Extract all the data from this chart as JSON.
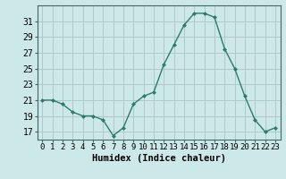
{
  "x": [
    0,
    1,
    2,
    3,
    4,
    5,
    6,
    7,
    8,
    9,
    10,
    11,
    12,
    13,
    14,
    15,
    16,
    17,
    18,
    19,
    20,
    21,
    22,
    23
  ],
  "y": [
    21,
    21,
    20.5,
    19.5,
    19,
    19,
    18.5,
    16.5,
    17.5,
    20.5,
    21.5,
    22,
    25.5,
    28,
    30.5,
    32,
    32,
    31.5,
    27.5,
    25,
    21.5,
    18.5,
    17,
    17.5
  ],
  "line_color": "#2d7a6e",
  "marker_color": "#2d7a6e",
  "bg_color": "#cce8e8",
  "grid_color": "#b0c8c8",
  "xlabel": "Humidex (Indice chaleur)",
  "yticks": [
    17,
    19,
    21,
    23,
    25,
    27,
    29,
    31
  ],
  "ylim": [
    16.0,
    33.0
  ],
  "xlim": [
    -0.5,
    23.5
  ],
  "xlabel_fontsize": 7.5,
  "tick_fontsize": 7,
  "xtick_labels": [
    "0",
    "1",
    "2",
    "3",
    "4",
    "5",
    "6",
    "7",
    "8",
    "9",
    "10",
    "11",
    "12",
    "13",
    "14",
    "15",
    "16",
    "17",
    "18",
    "19",
    "20",
    "21",
    "22",
    "23"
  ]
}
